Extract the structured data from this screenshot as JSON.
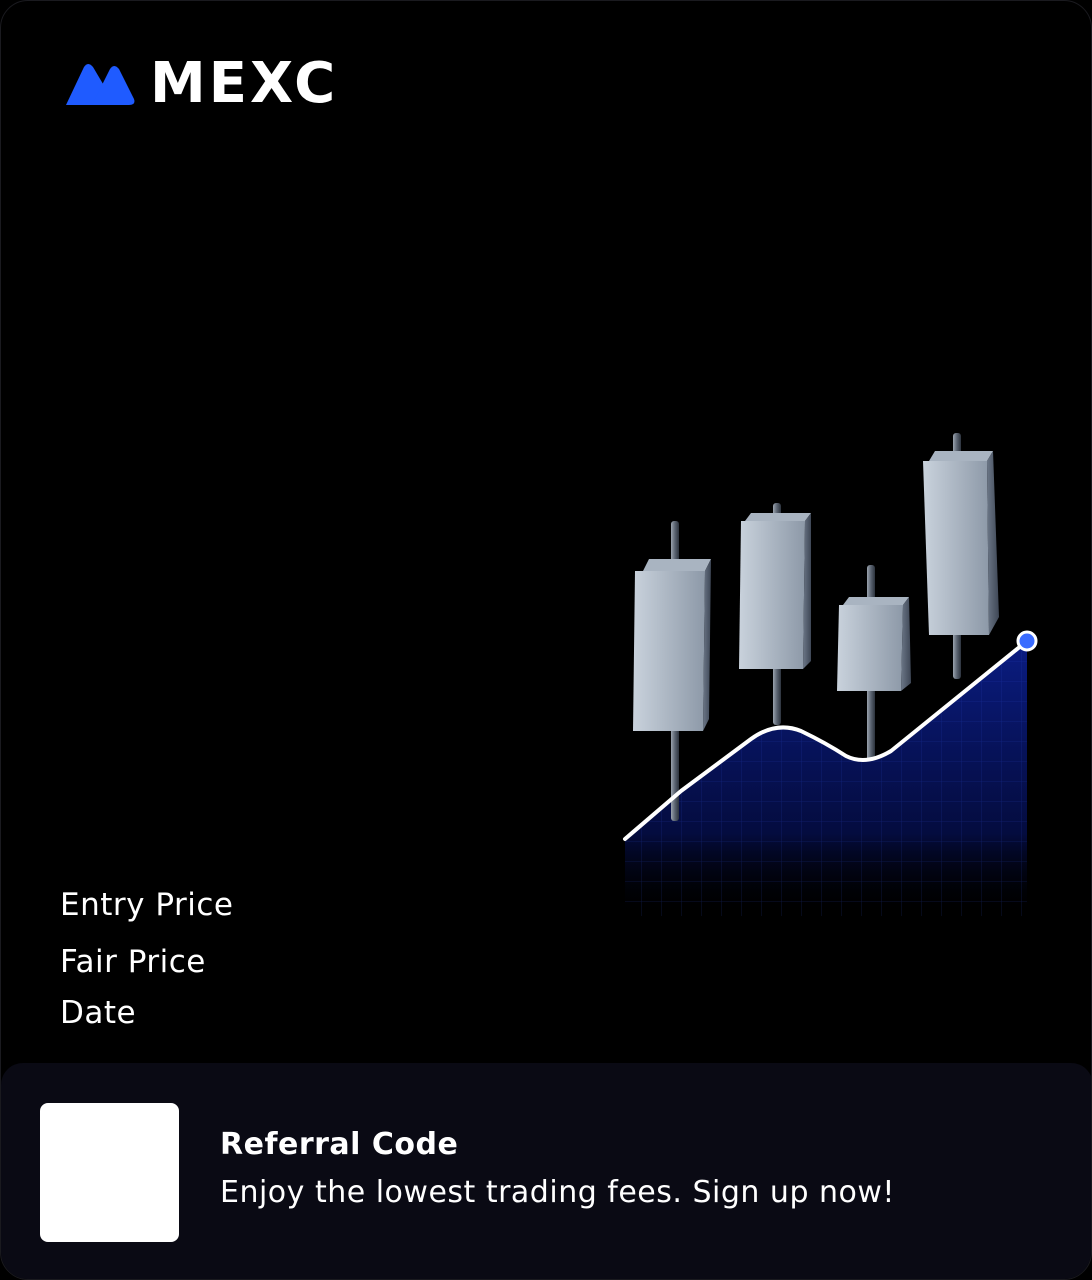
{
  "brand": {
    "name": "MEXC",
    "logo_icon": "mexc-mountain-icon",
    "accent_color": "#1f5bff"
  },
  "labels": {
    "entry_price": "Entry Price",
    "fair_price": "Fair Price",
    "date": "Date"
  },
  "illustration": {
    "icon": "candlestick-chart-icon",
    "area_color": "#0a1a7a",
    "point_color": "#3a6bff"
  },
  "footer": {
    "qr_icon": "qr-code-placeholder",
    "referral_title": "Referral Code",
    "referral_description": "Enjoy the lowest trading fees. Sign up now!"
  }
}
